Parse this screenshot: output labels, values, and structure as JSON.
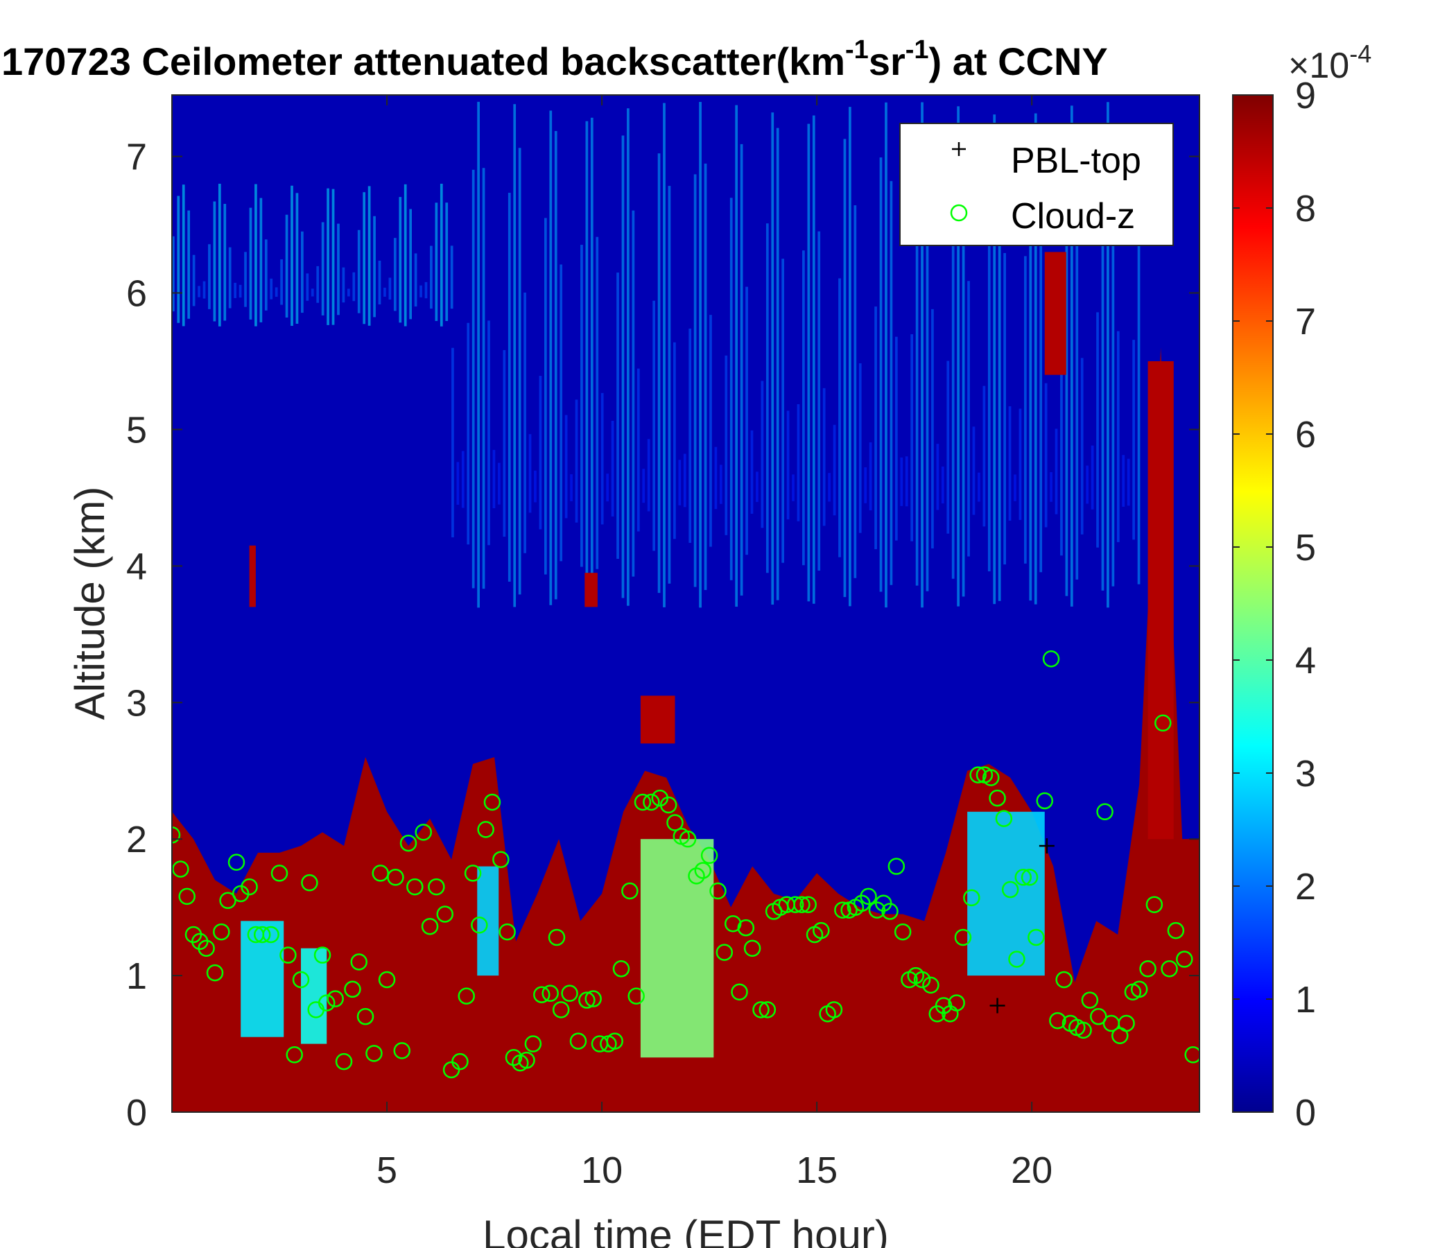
{
  "chart_data": {
    "type": "heatmap",
    "title_main": "170723 Ceilometer attenuated backscatter(km",
    "title_sup1": "-1",
    "title_mid": "sr",
    "title_sup2": "-1",
    "title_end": ") at CCNY",
    "xlabel": "Local time (EDT hour)",
    "ylabel": "Altitude (km)",
    "xlim": [
      0,
      23.9
    ],
    "ylim": [
      0,
      7.45
    ],
    "xticks": [
      "5",
      "10",
      "15",
      "20"
    ],
    "xtick_values": [
      5,
      10,
      15,
      20
    ],
    "yticks": [
      "0",
      "1",
      "2",
      "3",
      "4",
      "5",
      "6",
      "7"
    ],
    "ytick_values": [
      0,
      1,
      2,
      3,
      4,
      5,
      6,
      7
    ],
    "colorbar": {
      "colormap": "jet",
      "clim": [
        0,
        9
      ],
      "ticks": [
        "0",
        "1",
        "2",
        "3",
        "4",
        "5",
        "6",
        "7",
        "8",
        "9"
      ],
      "tick_values": [
        0,
        1,
        2,
        3,
        4,
        5,
        6,
        7,
        8,
        9
      ],
      "exponent_base": "×10",
      "exponent": "-4"
    },
    "legend": {
      "position": "top-right",
      "entries": [
        {
          "label": "PBL-top",
          "marker": "+",
          "color": "#000000"
        },
        {
          "label": "Cloud-z",
          "marker": "o",
          "color": "#00ff00"
        }
      ]
    },
    "heatmap_layers": {
      "boundary_layer_top_km": [
        [
          0.0,
          2.2
        ],
        [
          0.5,
          2.0
        ],
        [
          1.0,
          1.7
        ],
        [
          1.5,
          1.6
        ],
        [
          2.0,
          1.9
        ],
        [
          2.5,
          1.9
        ],
        [
          3.0,
          1.95
        ],
        [
          3.5,
          2.05
        ],
        [
          4.0,
          1.95
        ],
        [
          4.5,
          2.6
        ],
        [
          5.0,
          2.2
        ],
        [
          5.5,
          1.95
        ],
        [
          6.0,
          2.15
        ],
        [
          6.5,
          1.85
        ],
        [
          7.0,
          2.55
        ],
        [
          7.5,
          2.6
        ],
        [
          8.0,
          1.25
        ],
        [
          8.5,
          1.6
        ],
        [
          9.0,
          2.0
        ],
        [
          9.5,
          1.4
        ],
        [
          10.0,
          1.6
        ],
        [
          10.5,
          2.2
        ],
        [
          11.0,
          2.5
        ],
        [
          11.5,
          2.45
        ],
        [
          12.0,
          2.1
        ],
        [
          12.5,
          1.85
        ],
        [
          13.0,
          1.5
        ],
        [
          13.5,
          1.8
        ],
        [
          14.0,
          1.6
        ],
        [
          14.5,
          1.55
        ],
        [
          15.0,
          1.75
        ],
        [
          15.5,
          1.6
        ],
        [
          16.0,
          1.5
        ],
        [
          16.5,
          1.45
        ],
        [
          17.0,
          1.45
        ],
        [
          17.5,
          1.4
        ],
        [
          18.0,
          1.9
        ],
        [
          18.5,
          2.5
        ],
        [
          19.0,
          2.55
        ],
        [
          19.5,
          2.45
        ],
        [
          20.0,
          2.2
        ],
        [
          20.5,
          1.8
        ],
        [
          21.0,
          0.95
        ],
        [
          21.5,
          1.4
        ],
        [
          22.0,
          1.3
        ],
        [
          22.5,
          2.4
        ],
        [
          23.0,
          5.6
        ],
        [
          23.5,
          2.0
        ],
        [
          23.9,
          2.0
        ]
      ],
      "aerosol_patches_low": [
        {
          "x0": 1.6,
          "x1": 2.6,
          "y0": 0.55,
          "y1": 1.4,
          "level": 3.2
        },
        {
          "x0": 3.0,
          "x1": 3.6,
          "y0": 0.5,
          "y1": 1.2,
          "level": 3.5
        },
        {
          "x0": 7.1,
          "x1": 7.6,
          "y0": 1.0,
          "y1": 1.8,
          "level": 3.0
        },
        {
          "x0": 10.9,
          "x1": 12.6,
          "y0": 0.4,
          "y1": 2.0,
          "level": 4.5
        },
        {
          "x0": 18.5,
          "x1": 20.3,
          "y0": 1.0,
          "y1": 2.2,
          "level": 3.0
        }
      ],
      "elevated_layers": [
        {
          "x0": 0.0,
          "x1": 6.5,
          "y0": 5.7,
          "y1": 6.8,
          "level": 1.8
        },
        {
          "x0": 6.5,
          "x1": 22.5,
          "y0": 3.5,
          "y1": 7.4,
          "level": 1.4
        }
      ],
      "dense_columns": [
        {
          "x0": 1.8,
          "x1": 1.95,
          "y0": 3.7,
          "y1": 4.15
        },
        {
          "x0": 9.6,
          "x1": 9.9,
          "y0": 3.7,
          "y1": 3.95
        },
        {
          "x0": 10.9,
          "x1": 11.7,
          "y0": 2.7,
          "y1": 3.05
        },
        {
          "x0": 22.7,
          "x1": 23.3,
          "y0": 2.0,
          "y1": 5.5
        },
        {
          "x0": 20.3,
          "x1": 20.8,
          "y0": 5.4,
          "y1": 6.3
        }
      ]
    },
    "series": [
      {
        "name": "Cloud-z",
        "marker": "circle",
        "color": "#00ff00",
        "points": [
          [
            0.0,
            2.03
          ],
          [
            0.2,
            1.78
          ],
          [
            0.35,
            1.58
          ],
          [
            0.5,
            1.3
          ],
          [
            0.65,
            1.25
          ],
          [
            0.8,
            1.2
          ],
          [
            1.0,
            1.02
          ],
          [
            1.15,
            1.32
          ],
          [
            1.3,
            1.55
          ],
          [
            1.5,
            1.83
          ],
          [
            1.6,
            1.6
          ],
          [
            1.8,
            1.65
          ],
          [
            1.95,
            1.3
          ],
          [
            2.1,
            1.3
          ],
          [
            2.3,
            1.3
          ],
          [
            2.5,
            1.75
          ],
          [
            2.7,
            1.15
          ],
          [
            2.85,
            0.42
          ],
          [
            3.0,
            0.97
          ],
          [
            3.2,
            1.68
          ],
          [
            3.35,
            0.75
          ],
          [
            3.5,
            1.15
          ],
          [
            3.6,
            0.8
          ],
          [
            3.8,
            0.83
          ],
          [
            4.0,
            0.37
          ],
          [
            4.2,
            0.9
          ],
          [
            4.35,
            1.1
          ],
          [
            4.5,
            0.7
          ],
          [
            4.7,
            0.43
          ],
          [
            4.85,
            1.75
          ],
          [
            5.0,
            0.97
          ],
          [
            5.2,
            1.72
          ],
          [
            5.35,
            0.45
          ],
          [
            5.5,
            1.97
          ],
          [
            5.65,
            1.65
          ],
          [
            5.85,
            2.05
          ],
          [
            6.0,
            1.36
          ],
          [
            6.15,
            1.65
          ],
          [
            6.35,
            1.45
          ],
          [
            6.5,
            0.31
          ],
          [
            6.7,
            0.37
          ],
          [
            6.85,
            0.85
          ],
          [
            7.0,
            1.75
          ],
          [
            7.15,
            1.37
          ],
          [
            7.3,
            2.07
          ],
          [
            7.45,
            2.27
          ],
          [
            7.65,
            1.85
          ],
          [
            7.8,
            1.32
          ],
          [
            7.95,
            0.4
          ],
          [
            8.1,
            0.36
          ],
          [
            8.25,
            0.38
          ],
          [
            8.4,
            0.5
          ],
          [
            8.6,
            0.86
          ],
          [
            8.8,
            0.87
          ],
          [
            8.95,
            1.28
          ],
          [
            9.05,
            0.75
          ],
          [
            9.25,
            0.87
          ],
          [
            9.45,
            0.52
          ],
          [
            9.65,
            0.82
          ],
          [
            9.8,
            0.83
          ],
          [
            9.95,
            0.5
          ],
          [
            10.15,
            0.5
          ],
          [
            10.3,
            0.52
          ],
          [
            10.45,
            1.05
          ],
          [
            10.65,
            1.62
          ],
          [
            10.8,
            0.85
          ],
          [
            10.95,
            2.27
          ],
          [
            11.15,
            2.27
          ],
          [
            11.35,
            2.3
          ],
          [
            11.55,
            2.25
          ],
          [
            11.7,
            2.12
          ],
          [
            11.85,
            2.02
          ],
          [
            12.0,
            2.0
          ],
          [
            12.2,
            1.73
          ],
          [
            12.35,
            1.77
          ],
          [
            12.5,
            1.88
          ],
          [
            12.7,
            1.62
          ],
          [
            12.85,
            1.17
          ],
          [
            13.05,
            1.38
          ],
          [
            13.2,
            0.88
          ],
          [
            13.35,
            1.35
          ],
          [
            13.5,
            1.2
          ],
          [
            13.7,
            0.75
          ],
          [
            13.85,
            0.75
          ],
          [
            14.0,
            1.47
          ],
          [
            14.15,
            1.5
          ],
          [
            14.3,
            1.52
          ],
          [
            14.5,
            1.52
          ],
          [
            14.65,
            1.52
          ],
          [
            14.8,
            1.52
          ],
          [
            14.95,
            1.3
          ],
          [
            15.1,
            1.33
          ],
          [
            15.25,
            0.72
          ],
          [
            15.4,
            0.75
          ],
          [
            15.6,
            1.48
          ],
          [
            15.75,
            1.48
          ],
          [
            15.9,
            1.5
          ],
          [
            16.05,
            1.53
          ],
          [
            16.2,
            1.58
          ],
          [
            16.4,
            1.48
          ],
          [
            16.55,
            1.53
          ],
          [
            16.7,
            1.47
          ],
          [
            16.85,
            1.8
          ],
          [
            17.0,
            1.32
          ],
          [
            17.15,
            0.97
          ],
          [
            17.3,
            1.0
          ],
          [
            17.45,
            0.97
          ],
          [
            17.65,
            0.93
          ],
          [
            17.8,
            0.72
          ],
          [
            17.95,
            0.78
          ],
          [
            18.1,
            0.72
          ],
          [
            18.25,
            0.8
          ],
          [
            18.4,
            1.28
          ],
          [
            18.6,
            1.57
          ],
          [
            18.75,
            2.47
          ],
          [
            18.9,
            2.47
          ],
          [
            19.05,
            2.45
          ],
          [
            19.2,
            2.3
          ],
          [
            19.35,
            2.15
          ],
          [
            19.5,
            1.63
          ],
          [
            19.65,
            1.12
          ],
          [
            19.8,
            1.72
          ],
          [
            19.95,
            1.72
          ],
          [
            20.1,
            1.28
          ],
          [
            20.3,
            2.28
          ],
          [
            20.45,
            3.32
          ],
          [
            20.6,
            0.67
          ],
          [
            20.75,
            0.97
          ],
          [
            20.9,
            0.65
          ],
          [
            21.05,
            0.62
          ],
          [
            21.2,
            0.6
          ],
          [
            21.35,
            0.82
          ],
          [
            21.55,
            0.7
          ],
          [
            21.7,
            2.2
          ],
          [
            21.85,
            0.65
          ],
          [
            22.05,
            0.56
          ],
          [
            22.2,
            0.65
          ],
          [
            22.35,
            0.88
          ],
          [
            22.5,
            0.9
          ],
          [
            22.7,
            1.05
          ],
          [
            22.85,
            1.52
          ],
          [
            23.05,
            2.85
          ],
          [
            23.2,
            1.05
          ],
          [
            23.35,
            1.33
          ],
          [
            23.55,
            1.12
          ],
          [
            23.75,
            0.42
          ]
        ]
      },
      {
        "name": "PBL-top",
        "marker": "plus",
        "color": "#000000",
        "points": [
          [
            19.2,
            0.78
          ],
          [
            20.35,
            1.95
          ]
        ]
      }
    ]
  }
}
